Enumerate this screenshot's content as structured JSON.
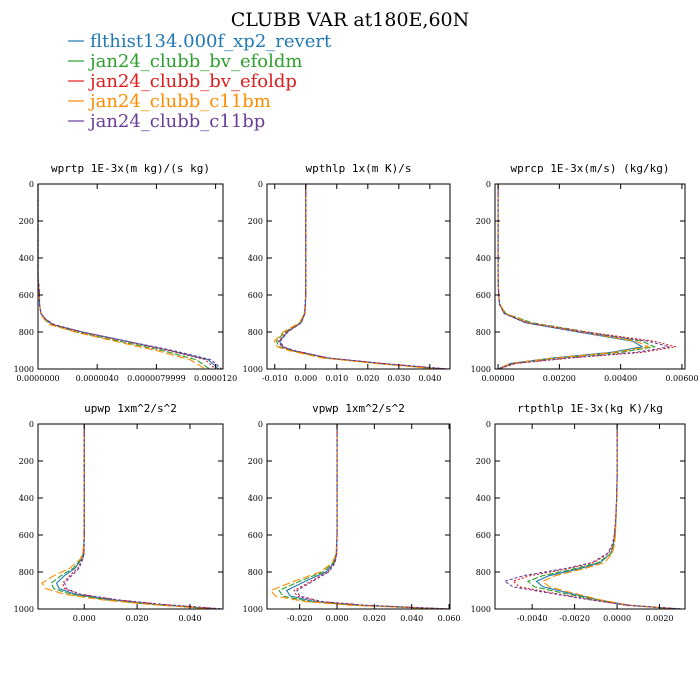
{
  "title": "CLUBB VAR at180E,60N",
  "legend": [
    {
      "name": "flthist134.000f_xp2_revert",
      "color": "#2079b4"
    },
    {
      "name": "jan24_clubb_bv_efoldm",
      "color": "#2ca02c"
    },
    {
      "name": "jan24_clubb_bv_efoldp",
      "color": "#e31a1c"
    },
    {
      "name": "jan24_clubb_c11bm",
      "color": "#ff8c00"
    },
    {
      "name": "jan24_clubb_c11bp",
      "color": "#6a3d9a"
    }
  ],
  "chart_data": [
    {
      "type": "line",
      "title": "wprtp  1E-3x(m kg)/(s kg)",
      "xlim": [
        0,
        1.25e-05
      ],
      "ylim": [
        1000,
        0
      ],
      "y_inverted": true,
      "xticks": [
        "0.0000000",
        "0.0000040",
        "0.0000079999",
        "0.0000120"
      ],
      "xtick_values": [
        0,
        4e-06,
        7.9999e-06,
        1.2e-05
      ],
      "y": [
        0,
        100,
        200,
        300,
        400,
        500,
        600,
        650,
        700,
        730,
        760,
        800,
        850,
        900,
        950,
        1000
      ],
      "series": [
        {
          "values": [
            0,
            0,
            0,
            0,
            0,
            0,
            1e-07,
            1e-07,
            2e-07,
            5e-07,
            1e-06,
            3e-06,
            6e-06,
            8.9e-06,
            1.15e-05,
            1.22e-05
          ]
        },
        {
          "values": [
            0,
            0,
            0,
            0,
            0,
            0,
            1e-07,
            1e-07,
            2e-07,
            4e-07,
            9e-07,
            2.6e-06,
            5.5e-06,
            8.4e-06,
            1.07e-05,
            1.16e-05
          ]
        },
        {
          "values": [
            0,
            0,
            0,
            0,
            0,
            0,
            1e-07,
            1e-07,
            2e-07,
            5e-07,
            1e-06,
            2.9e-06,
            5.9e-06,
            8.8e-06,
            1.13e-05,
            1.2e-05
          ]
        },
        {
          "values": [
            0,
            0,
            0,
            0,
            0,
            0,
            1e-07,
            1e-07,
            2e-07,
            4e-07,
            8e-07,
            2.5e-06,
            5.2e-06,
            8e-06,
            1.03e-05,
            1.13e-05
          ]
        },
        {
          "values": [
            0,
            0,
            0,
            0,
            0,
            0,
            1e-07,
            1e-07,
            2e-07,
            5e-07,
            1.1e-06,
            3e-06,
            6e-06,
            9.1e-06,
            1.17e-05,
            1.24e-05
          ]
        }
      ]
    },
    {
      "type": "line",
      "title": "wpthlp  1x(m K)/s",
      "xlim": [
        -0.0125,
        0.0465
      ],
      "ylim": [
        1000,
        0
      ],
      "y_inverted": true,
      "xticks": [
        "-0.010",
        "0.000",
        "0.010",
        "0.020",
        "0.030",
        "0.040"
      ],
      "xtick_values": [
        -0.01,
        0,
        0.01,
        0.02,
        0.03,
        0.04
      ],
      "y": [
        0,
        100,
        200,
        300,
        400,
        500,
        600,
        700,
        750,
        800,
        850,
        880,
        900,
        940,
        970,
        1000
      ],
      "series": [
        {
          "values": [
            0,
            0,
            0,
            0,
            0,
            0,
            0,
            -0.0003,
            -0.0015,
            -0.006,
            -0.0085,
            -0.0075,
            -0.004,
            0.007,
            0.024,
            0.044
          ]
        },
        {
          "values": [
            0,
            0,
            0,
            0,
            0,
            0,
            0,
            -0.0004,
            -0.0018,
            -0.0068,
            -0.0095,
            -0.0085,
            -0.0048,
            0.006,
            0.023,
            0.0435
          ]
        },
        {
          "values": [
            0,
            0,
            0,
            0,
            0,
            0,
            0,
            -0.0003,
            -0.0016,
            -0.0062,
            -0.0088,
            -0.0078,
            -0.0042,
            0.0068,
            0.0245,
            0.0455
          ]
        },
        {
          "values": [
            0,
            0,
            0,
            0,
            0,
            0,
            0,
            -0.0005,
            -0.002,
            -0.0072,
            -0.0102,
            -0.0092,
            -0.0055,
            0.0052,
            0.0225,
            0.0425
          ]
        },
        {
          "values": [
            0,
            0,
            0,
            0,
            0,
            0,
            0,
            -0.0003,
            -0.0014,
            -0.0058,
            -0.0082,
            -0.0072,
            -0.0038,
            0.0072,
            0.025,
            0.046
          ]
        }
      ]
    },
    {
      "type": "line",
      "title": "wprcp  1E-3x(m/s) (kg/kg)",
      "xlim": [
        -0.0001,
        0.0061
      ],
      "ylim": [
        1000,
        0
      ],
      "y_inverted": true,
      "xticks": [
        "0.00000",
        "0.00200",
        "0.00400",
        "0.00600"
      ],
      "xtick_values": [
        0,
        0.002,
        0.004,
        0.006
      ],
      "y": [
        0,
        100,
        200,
        300,
        400,
        500,
        600,
        650,
        700,
        750,
        800,
        850,
        880,
        910,
        940,
        970,
        1000
      ],
      "series": [
        {
          "values": [
            0,
            0,
            0,
            0,
            0,
            0,
            2e-05,
            5e-05,
            0.0002,
            0.0009,
            0.0026,
            0.0044,
            0.0047,
            0.0037,
            0.0018,
            0.0004,
            0
          ]
        },
        {
          "values": [
            0,
            0,
            0,
            0,
            0,
            0,
            2e-05,
            6e-05,
            0.00025,
            0.0011,
            0.0029,
            0.0047,
            0.0051,
            0.004,
            0.002,
            0.0005,
            0
          ]
        },
        {
          "values": [
            0,
            0,
            0,
            0,
            0,
            0,
            2e-05,
            5e-05,
            0.00022,
            0.001,
            0.0029,
            0.0051,
            0.0058,
            0.0047,
            0.0024,
            0.0006,
            0
          ]
        },
        {
          "values": [
            0,
            0,
            0,
            0,
            0,
            0,
            2e-05,
            6e-05,
            0.00024,
            0.001,
            0.0027,
            0.0045,
            0.0049,
            0.0038,
            0.0019,
            0.0004,
            0
          ]
        },
        {
          "values": [
            0,
            0,
            0,
            0,
            0,
            0,
            2e-05,
            4e-05,
            0.0002,
            0.0009,
            0.0027,
            0.0049,
            0.0056,
            0.0045,
            0.0023,
            0.0005,
            0
          ]
        }
      ]
    },
    {
      "type": "line",
      "title": "upwp  1xm^2/s^2",
      "xlim": [
        -0.0175,
        0.0525
      ],
      "ylim": [
        1000,
        0
      ],
      "y_inverted": true,
      "xticks": [
        "0.000",
        "0.020",
        "0.040"
      ],
      "xtick_values": [
        0,
        0.02,
        0.04
      ],
      "y": [
        0,
        100,
        200,
        300,
        400,
        500,
        600,
        700,
        730,
        780,
        820,
        860,
        890,
        920,
        950,
        975,
        1000
      ],
      "series": [
        {
          "values": [
            0,
            0,
            0,
            0,
            0,
            0,
            0,
            -0.0003,
            -0.001,
            -0.0035,
            -0.0075,
            -0.0105,
            -0.0095,
            -0.0035,
            0.01,
            0.027,
            0.0505
          ]
        },
        {
          "values": [
            0,
            0,
            0,
            0,
            0,
            0,
            0,
            -0.0004,
            -0.0012,
            -0.0042,
            -0.0088,
            -0.0125,
            -0.0115,
            -0.005,
            0.008,
            0.025,
            0.0495
          ]
        },
        {
          "values": [
            0,
            0,
            0,
            0,
            0,
            0,
            0,
            -0.0001,
            -0.0006,
            -0.0025,
            -0.0055,
            -0.0082,
            -0.0075,
            -0.002,
            0.012,
            0.029,
            0.052
          ]
        },
        {
          "values": [
            0,
            0,
            0,
            0,
            0,
            0,
            0,
            -0.0005,
            -0.0015,
            -0.0055,
            -0.0115,
            -0.016,
            -0.0145,
            -0.0075,
            0.0065,
            0.0245,
            0.049
          ]
        },
        {
          "values": [
            0,
            0,
            0,
            0,
            0,
            0,
            0,
            -0.0001,
            -0.0005,
            -0.002,
            -0.0048,
            -0.0074,
            -0.0068,
            -0.0015,
            0.0125,
            0.0295,
            0.0525
          ]
        }
      ]
    },
    {
      "type": "line",
      "title": "vpwp  1xm^2/s^2",
      "xlim": [
        -0.0375,
        0.0605
      ],
      "ylim": [
        1000,
        0
      ],
      "y_inverted": true,
      "xticks": [
        "-0.020",
        "0.000",
        "0.020",
        "0.040",
        "0.060"
      ],
      "xtick_values": [
        -0.02,
        0,
        0.02,
        0.04,
        0.06
      ],
      "y": [
        0,
        100,
        200,
        300,
        400,
        500,
        600,
        700,
        750,
        800,
        850,
        900,
        930,
        960,
        980,
        1000
      ],
      "series": [
        {
          "values": [
            0,
            0,
            0,
            0,
            0,
            0,
            0,
            -0.0003,
            -0.0015,
            -0.006,
            -0.017,
            -0.027,
            -0.025,
            -0.012,
            0.012,
            0.059
          ]
        },
        {
          "values": [
            0,
            0,
            0,
            0,
            0,
            0,
            0,
            -0.0004,
            -0.002,
            -0.0075,
            -0.02,
            -0.031,
            -0.029,
            -0.0145,
            0.01,
            0.0585
          ]
        },
        {
          "values": [
            0,
            0,
            0,
            0,
            0,
            0,
            0,
            -0.0002,
            -0.0012,
            -0.005,
            -0.014,
            -0.023,
            -0.0215,
            -0.009,
            0.015,
            0.06
          ]
        },
        {
          "values": [
            0,
            0,
            0,
            0,
            0,
            0,
            0,
            -0.0005,
            -0.0025,
            -0.009,
            -0.023,
            -0.0355,
            -0.033,
            -0.017,
            0.008,
            0.058
          ]
        },
        {
          "values": [
            0,
            0,
            0,
            0,
            0,
            0,
            0,
            -0.0002,
            -0.001,
            -0.0045,
            -0.013,
            -0.0215,
            -0.02,
            -0.008,
            0.016,
            0.0605
          ]
        }
      ]
    },
    {
      "type": "line",
      "title": "rtpthlp  1E-3x(kg K)/kg",
      "xlim": [
        -0.00575,
        0.0032
      ],
      "ylim": [
        1000,
        0
      ],
      "y_inverted": true,
      "xticks": [
        "-0.0040",
        "-0.0020",
        "0.0000",
        "0.0020"
      ],
      "xtick_values": [
        -0.004,
        -0.002,
        0,
        0.002
      ],
      "y": [
        0,
        100,
        200,
        300,
        400,
        500,
        600,
        650,
        700,
        750,
        780,
        820,
        850,
        880,
        910,
        950,
        980,
        1000
      ],
      "series": [
        {
          "values": [
            0,
            0,
            0,
            0,
            -2e-05,
            -5e-05,
            -0.0001,
            -0.00017,
            -0.0003,
            -0.0008,
            -0.0017,
            -0.0032,
            -0.0038,
            -0.0035,
            -0.0024,
            -0.0009,
            0.0006,
            0.0029
          ]
        },
        {
          "values": [
            0,
            0,
            0,
            0,
            -2e-05,
            -5e-05,
            -0.0001,
            -0.00015,
            -0.00028,
            -0.0009,
            -0.0019,
            -0.0035,
            -0.0042,
            -0.0039,
            -0.0027,
            -0.001,
            0.0005,
            0.0029
          ]
        },
        {
          "values": [
            0,
            0,
            0,
            0,
            -2e-05,
            -6e-05,
            -0.00012,
            -0.0002,
            -0.0004,
            -0.0011,
            -0.0022,
            -0.0041,
            -0.0049,
            -0.0046,
            -0.0032,
            -0.0012,
            0.0005,
            0.003
          ]
        },
        {
          "values": [
            0,
            0,
            0,
            0,
            -2e-05,
            -4e-05,
            -8e-05,
            -0.00012,
            -0.00022,
            -0.0006,
            -0.0015,
            -0.0029,
            -0.0035,
            -0.0032,
            -0.0022,
            -0.0008,
            0.0006,
            0.0028
          ]
        },
        {
          "values": [
            0,
            0,
            0,
            0,
            -2e-05,
            -6e-05,
            -0.00013,
            -0.00022,
            -0.00045,
            -0.0012,
            -0.0024,
            -0.0044,
            -0.0053,
            -0.0049,
            -0.0034,
            -0.0013,
            0.0005,
            0.0031
          ]
        }
      ]
    }
  ],
  "yticks": [
    "0",
    "200",
    "400",
    "600",
    "800",
    "1000"
  ],
  "ytick_values": [
    0,
    200,
    400,
    600,
    800,
    1000
  ]
}
